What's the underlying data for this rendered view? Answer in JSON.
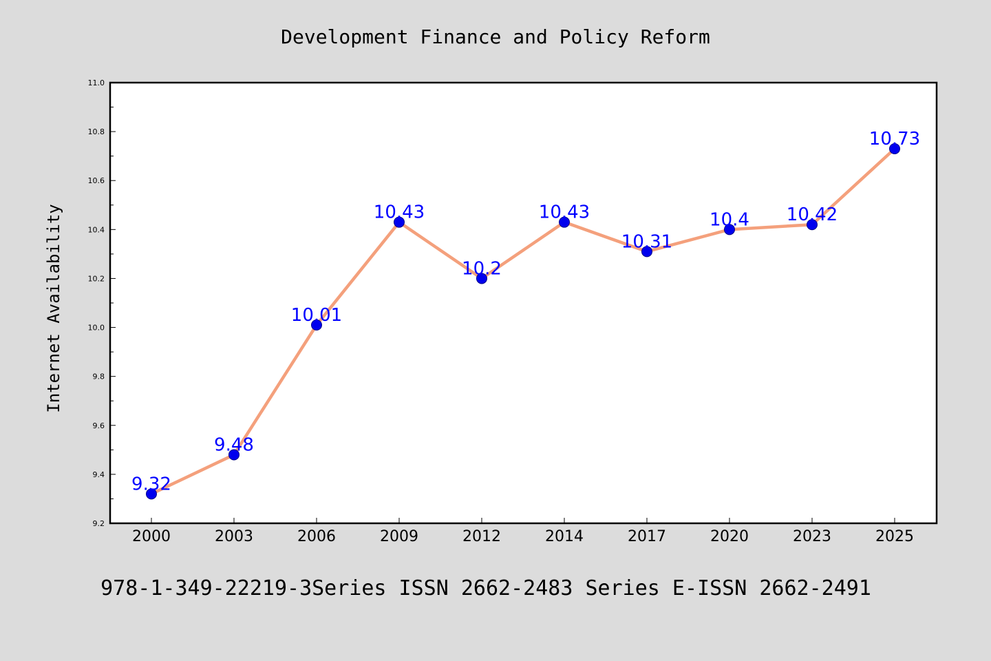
{
  "colors": {
    "background": "#dcdcdc",
    "plot_background": "#ffffff",
    "line": "#f4a07c",
    "marker": "#0000ee",
    "data_label": "#0000ff",
    "text": "#000000"
  },
  "chart_data": {
    "type": "line",
    "title": "Development Finance and Policy Reform",
    "xlabel": "",
    "ylabel": "Internet Availability",
    "categories": [
      "2000",
      "2003",
      "2006",
      "2009",
      "2012",
      "2014",
      "2017",
      "2020",
      "2023",
      "2025"
    ],
    "series": [
      {
        "values": [
          9.32,
          9.48,
          10.01,
          10.43,
          10.2,
          10.43,
          10.31,
          10.4,
          10.42,
          10.73
        ],
        "labels": [
          "9.32",
          "9.48",
          "10.01",
          "10.43",
          "10.2",
          "10.43",
          "10.31",
          "10.4",
          "10.42",
          "10.73"
        ]
      }
    ],
    "ylim": [
      9.2,
      11.0
    ],
    "yticks": [
      "9.2",
      "9.4",
      "9.6",
      "9.8",
      "10.0",
      "10.2",
      "10.4",
      "10.6",
      "10.8",
      "11.0"
    ],
    "grid": false,
    "legend": "none",
    "footnote": "978-1-349-22219-3Series ISSN 2662-2483 Series E-ISSN 2662-2491"
  }
}
